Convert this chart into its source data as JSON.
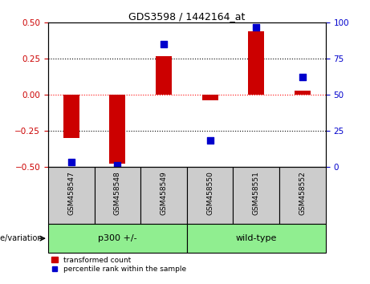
{
  "title": "GDS3598 / 1442164_at",
  "samples": [
    "GSM458547",
    "GSM458548",
    "GSM458549",
    "GSM458550",
    "GSM458551",
    "GSM458552"
  ],
  "red_values": [
    -0.3,
    -0.48,
    0.27,
    -0.04,
    0.44,
    0.03
  ],
  "blue_values_pct": [
    3,
    1,
    85,
    18,
    97,
    62
  ],
  "group_defs": [
    {
      "start": 0,
      "end": 2,
      "label": "p300 +/-",
      "color": "#90EE90"
    },
    {
      "start": 3,
      "end": 5,
      "label": "wild-type",
      "color": "#90EE90"
    }
  ],
  "group_label": "genotype/variation",
  "ylim_left": [
    -0.5,
    0.5
  ],
  "ylim_right": [
    0,
    100
  ],
  "yticks_left": [
    -0.5,
    -0.25,
    0.0,
    0.25,
    0.5
  ],
  "yticks_right": [
    0,
    25,
    50,
    75,
    100
  ],
  "hlines": [
    -0.25,
    0.0,
    0.25
  ],
  "hline_colors": [
    "black",
    "red",
    "black"
  ],
  "hline_styles": [
    "dotted",
    "dotted",
    "dotted"
  ],
  "bar_color": "#cc0000",
  "dot_color": "#0000cc",
  "bar_width": 0.35,
  "dot_size": 28,
  "left_tick_color": "#cc0000",
  "right_tick_color": "#0000cc",
  "sample_box_color": "#cccccc",
  "plot_bg": "#ffffff",
  "legend_red_label": "transformed count",
  "legend_blue_label": "percentile rank within the sample"
}
